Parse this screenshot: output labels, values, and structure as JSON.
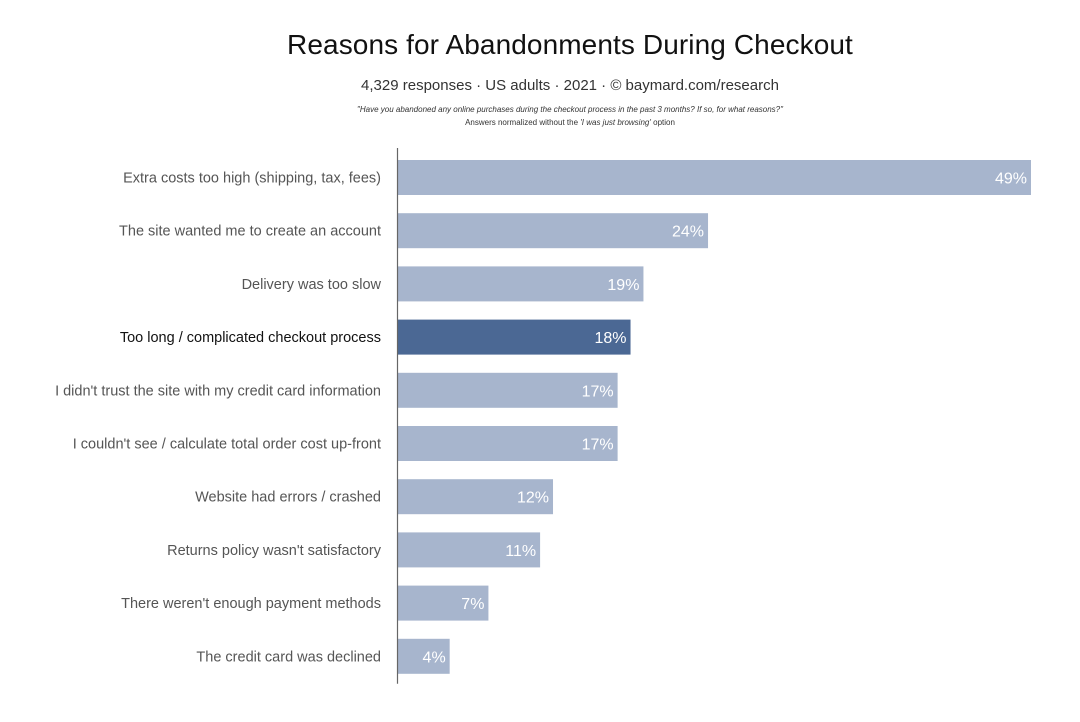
{
  "header": {
    "title": "Reasons for Abandonments During Checkout",
    "subtitle": "4,329 responses  ·  US adults  ·  2021  ·  ©  baymard.com/research",
    "question": "\"Have you abandoned any online purchases during the checkout process in the past 3 months? If so, for what reasons?\"",
    "note_prefix": "Answers normalized without the ",
    "note_emphasis": "'I was just browsing'",
    "note_suffix": " option"
  },
  "colors": {
    "bar": "#a7b5cd",
    "highlight_bar": "#4b6894",
    "label": "#555555",
    "highlight_label": "#111111",
    "axis": "#666666"
  },
  "chart_data": {
    "type": "bar",
    "orientation": "horizontal",
    "title": "Reasons for Abandonments During Checkout",
    "categories": [
      "Extra costs too high (shipping, tax, fees)",
      "The site wanted me to create an account",
      "Delivery was too slow",
      "Too long / complicated checkout process",
      "I didn't trust the site with my credit card information",
      "I couldn't see / calculate total order cost up-front",
      "Website had errors / crashed",
      "Returns policy wasn't satisfactory",
      "There weren't enough payment methods",
      "The credit card was declined"
    ],
    "values": [
      49,
      24,
      19,
      18,
      17,
      17,
      12,
      11,
      7,
      4
    ],
    "value_labels": [
      "49%",
      "24%",
      "19%",
      "18%",
      "17%",
      "17%",
      "12%",
      "11%",
      "7%",
      "4%"
    ],
    "highlighted_index": 3,
    "xlim": [
      0,
      49
    ],
    "grid": false,
    "legend": "none"
  }
}
